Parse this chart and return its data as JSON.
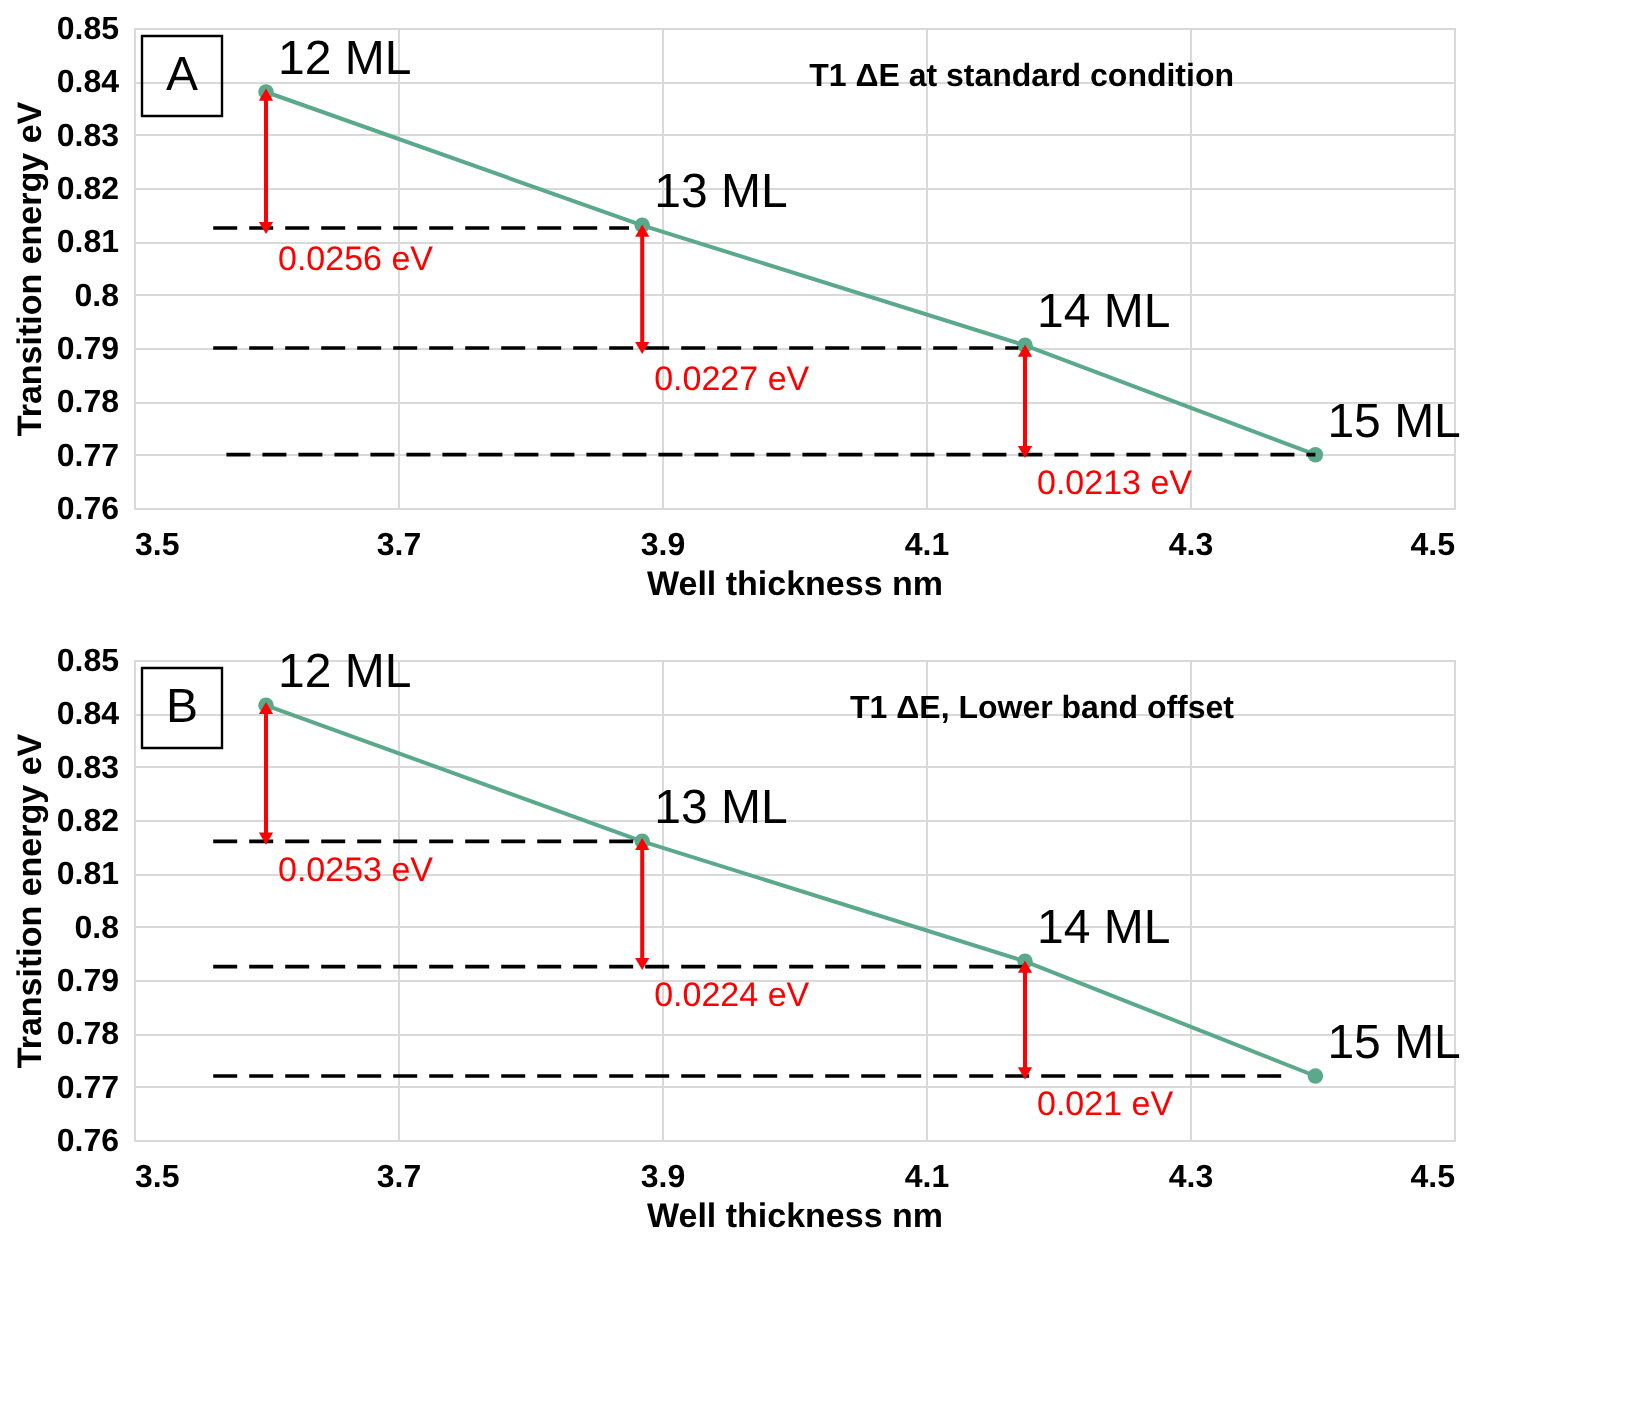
{
  "chart_data": [
    {
      "type": "line",
      "title": "T1 ΔE at standard condition",
      "xlabel": "Well thickness nm",
      "ylabel": "Transition energy eV",
      "xlim": [
        3.5,
        4.5
      ],
      "xticks": [
        3.5,
        3.7,
        3.9,
        4.1,
        4.3,
        4.5
      ],
      "ylim": [
        0.76,
        0.85
      ],
      "yticks": [
        0.76,
        0.77,
        0.78,
        0.79,
        0.8,
        0.81,
        0.82,
        0.83,
        0.84,
        0.85
      ],
      "grid": true,
      "series": [
        {
          "color": "#5ba98b",
          "marker": "circle",
          "line_style": "solid",
          "x": [
            3.6,
            3.885,
            4.175,
            4.395
          ],
          "values": [
            0.838,
            0.813,
            0.7905,
            0.77
          ]
        },
        {
          "color": "#000000",
          "marker": "none",
          "line_style": "dashed",
          "x": [
            3.56,
            3.875
          ],
          "values": [
            0.8125,
            0.8125
          ]
        },
        {
          "color": "#000000",
          "marker": "none",
          "line_style": "dashed",
          "x": [
            3.56,
            4.17
          ],
          "values": [
            0.79,
            0.79
          ]
        },
        {
          "color": "#000000",
          "marker": "none",
          "line_style": "dashed",
          "x": [
            3.57,
            4.395
          ],
          "values": [
            0.77,
            0.77
          ]
        },
        {
          "color": "#ff0000",
          "marker": "triangle",
          "line_style": "solid",
          "x": [
            3.6,
            3.6
          ],
          "values": [
            0.8375,
            0.8125
          ]
        },
        {
          "color": "#ff0000",
          "marker": "triangle",
          "line_style": "solid",
          "x": [
            3.885,
            3.885
          ],
          "values": [
            0.812,
            0.79
          ]
        },
        {
          "color": "#ff0000",
          "marker": "triangle",
          "line_style": "solid",
          "x": [
            4.175,
            4.175
          ],
          "values": [
            0.7895,
            0.7705
          ]
        }
      ],
      "annotations": [
        "A",
        {
          "text": "12 ML",
          "x": 3.6,
          "y": 0.838
        },
        {
          "text": "13 ML",
          "x": 3.885,
          "y": 0.813
        },
        {
          "text": "14 ML",
          "x": 4.175,
          "y": 0.7905
        },
        {
          "text": "15 ML",
          "x": 4.395,
          "y": 0.77
        },
        {
          "text": "0.0256 eV",
          "x": 3.6,
          "y": 0.8125
        },
        {
          "text": "0.0227 eV",
          "x": 3.885,
          "y": 0.79
        },
        {
          "text": "0.0213 eV",
          "x": 4.175,
          "y": 0.7705
        }
      ]
    },
    {
      "type": "line",
      "title": "T1 ΔE, Lower band offset",
      "xlabel": "Well thickness nm",
      "ylabel": "Transition energy eV",
      "xlim": [
        3.5,
        4.5
      ],
      "xticks": [
        3.5,
        3.7,
        3.9,
        4.1,
        4.3,
        4.5
      ],
      "ylim": [
        0.76,
        0.85
      ],
      "yticks": [
        0.76,
        0.77,
        0.78,
        0.79,
        0.8,
        0.81,
        0.82,
        0.83,
        0.84,
        0.85
      ],
      "grid": true,
      "series": [
        {
          "color": "#5ba98b",
          "marker": "circle",
          "line_style": "solid",
          "x": [
            3.6,
            3.885,
            4.175,
            4.395
          ],
          "values": [
            0.8415,
            0.816,
            0.7935,
            0.772
          ]
        },
        {
          "color": "#000000",
          "marker": "none",
          "line_style": "dashed",
          "x": [
            3.56,
            3.885
          ],
          "values": [
            0.816,
            0.816
          ]
        },
        {
          "color": "#000000",
          "marker": "none",
          "line_style": "dashed",
          "x": [
            3.56,
            4.175
          ],
          "values": [
            0.7925,
            0.7925
          ]
        },
        {
          "color": "#000000",
          "marker": "none",
          "line_style": "dashed",
          "x": [
            3.56,
            4.37
          ],
          "values": [
            0.772,
            0.772
          ]
        },
        {
          "color": "#ff0000",
          "marker": "triangle",
          "line_style": "solid",
          "x": [
            3.6,
            3.6
          ],
          "values": [
            0.841,
            0.8165
          ]
        },
        {
          "color": "#ff0000",
          "marker": "triangle",
          "line_style": "solid",
          "x": [
            3.885,
            3.885
          ],
          "values": [
            0.8155,
            0.793
          ]
        },
        {
          "color": "#ff0000",
          "marker": "triangle",
          "line_style": "solid",
          "x": [
            4.175,
            4.175
          ],
          "values": [
            0.7925,
            0.7725
          ]
        }
      ],
      "annotations": [
        "B",
        {
          "text": "12 ML",
          "x": 3.6,
          "y": 0.8415
        },
        {
          "text": "13 ML",
          "x": 3.885,
          "y": 0.816
        },
        {
          "text": "14 ML",
          "x": 4.175,
          "y": 0.7935
        },
        {
          "text": "15 ML",
          "x": 4.395,
          "y": 0.772
        },
        {
          "text": "0.0253 eV",
          "x": 3.6,
          "y": 0.8165
        },
        {
          "text": "0.0224 eV",
          "x": 3.885,
          "y": 0.793
        },
        {
          "text": "0.021 eV",
          "x": 4.175,
          "y": 0.7725
        }
      ]
    }
  ]
}
